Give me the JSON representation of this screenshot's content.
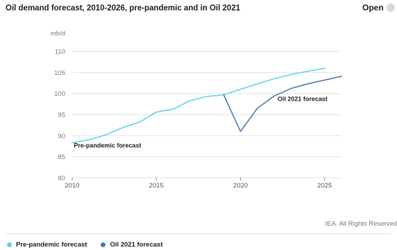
{
  "header": {
    "title": "Oil demand forecast, 2010-2026, pre-pandemic and in Oil 2021",
    "open_label": "Open",
    "open_icon": "open-icon"
  },
  "footer": {
    "rights": "IEA. All Rights Reserved"
  },
  "legend": [
    {
      "label": "Pre-pandemic forecast",
      "color": "#5fd3e6"
    },
    {
      "label": "Oil 2021 forecast",
      "color": "#4a78b5"
    }
  ],
  "chart_data": {
    "type": "line",
    "title": "Oil demand forecast, 2010-2026, pre-pandemic and in Oil 2021",
    "unit_label": "mb/d",
    "xlabel": "",
    "ylabel": "mb/d",
    "xlim": [
      2010,
      2026
    ],
    "ylim": [
      80,
      110
    ],
    "x_ticks": [
      2010,
      2015,
      2020,
      2025
    ],
    "y_ticks": [
      80,
      85,
      90,
      95,
      100,
      105,
      110
    ],
    "grid": true,
    "legend_position": "bottom-left",
    "series": [
      {
        "name": "Pre-pandemic forecast",
        "color": "#5fd3e6",
        "x": [
          2010,
          2011,
          2012,
          2013,
          2014,
          2015,
          2016,
          2017,
          2018,
          2019,
          2020,
          2021,
          2022,
          2023,
          2024,
          2025
        ],
        "y": [
          88.3,
          89.0,
          90.2,
          91.9,
          93.2,
          95.6,
          96.3,
          98.3,
          99.3,
          99.7,
          101.0,
          102.3,
          103.5,
          104.5,
          105.3,
          106.0
        ]
      },
      {
        "name": "Oil 2021 forecast",
        "color": "#4a78b5",
        "x": [
          2019,
          2020,
          2021,
          2022,
          2023,
          2024,
          2025,
          2026
        ],
        "y": [
          99.7,
          91.0,
          96.5,
          99.4,
          101.2,
          102.3,
          103.2,
          104.1
        ]
      }
    ],
    "annotations": [
      {
        "text": "Pre-pandemic forecast",
        "x": 2010.1,
        "y": 87.2
      },
      {
        "text": "Oil 2021 forecast",
        "x": 2022.2,
        "y": 98.2
      }
    ]
  }
}
